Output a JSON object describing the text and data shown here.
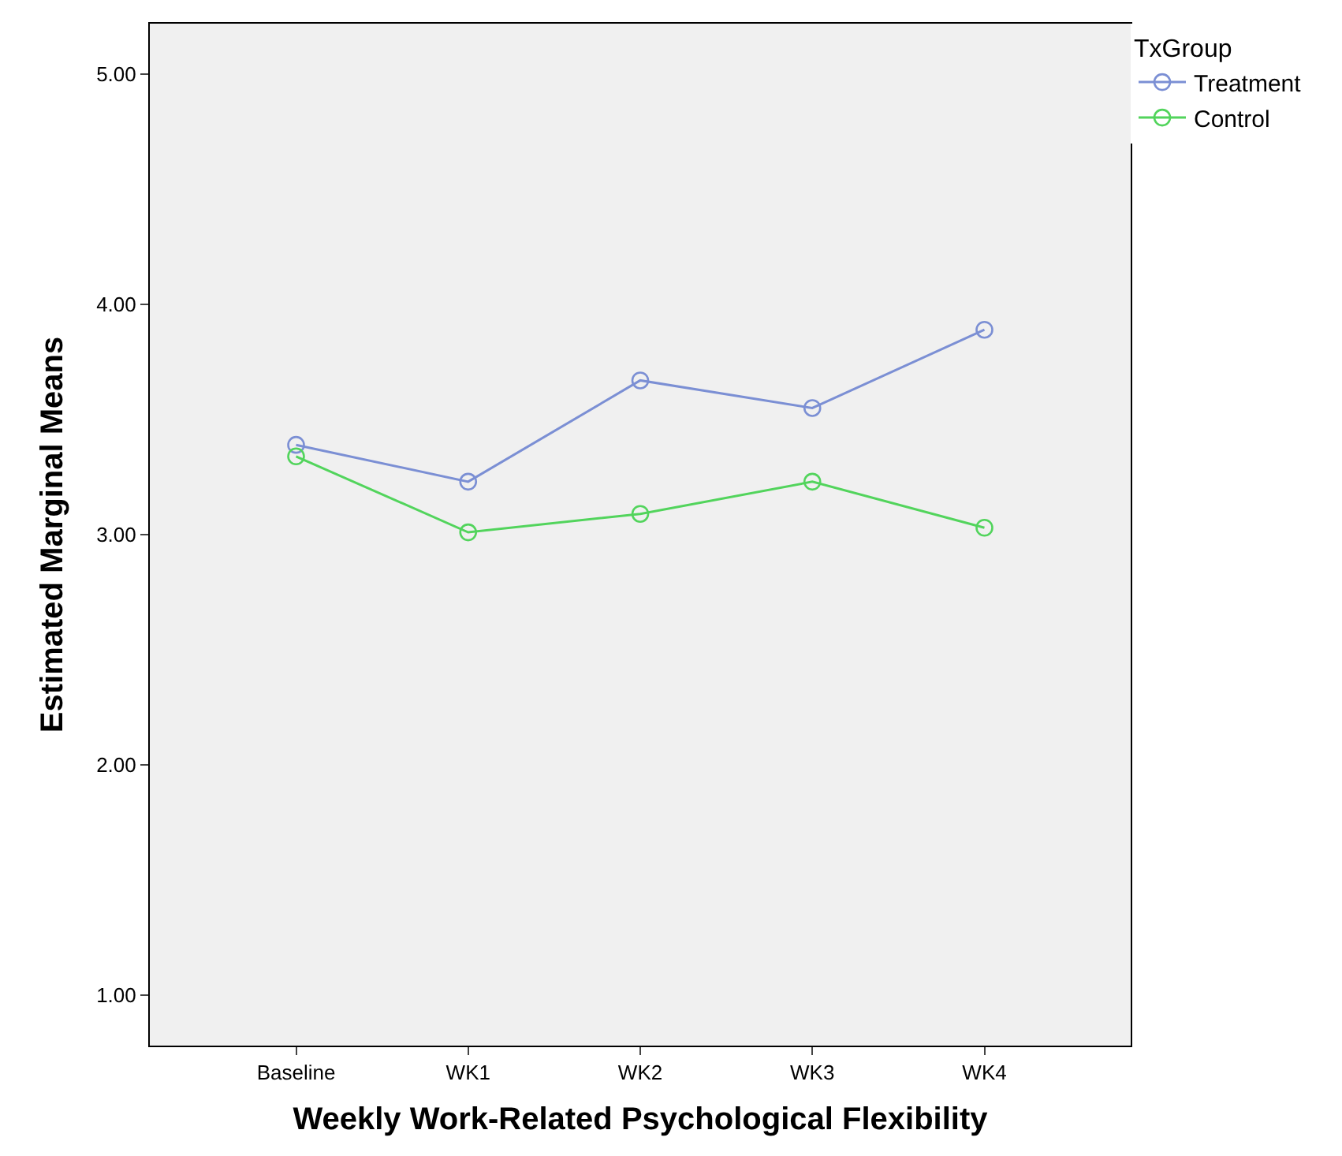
{
  "chart_data": {
    "type": "line",
    "xlabel": "Weekly Work-Related Psychological Flexibility",
    "ylabel": "Estimated Marginal Means",
    "legend_title": "TxGroup",
    "categories": [
      "Baseline",
      "WK1",
      "WK2",
      "WK3",
      "WK4"
    ],
    "series": [
      {
        "name": "Treatment",
        "color": "#7b8fd4",
        "values": [
          3.39,
          3.23,
          3.67,
          3.55,
          3.89
        ]
      },
      {
        "name": "Control",
        "color": "#52d45c",
        "values": [
          3.34,
          3.01,
          3.09,
          3.23,
          3.03
        ]
      }
    ],
    "ylim": [
      0.78,
      5.22
    ],
    "yticks": [
      {
        "value": 1,
        "label": "1.00"
      },
      {
        "value": 2,
        "label": "2.00"
      },
      {
        "value": 3,
        "label": "3.00"
      },
      {
        "value": 4,
        "label": "4.00"
      },
      {
        "value": 5,
        "label": "5.00"
      }
    ],
    "grid": false,
    "legend": "top right",
    "marker": "circle",
    "line_style": "solid"
  }
}
